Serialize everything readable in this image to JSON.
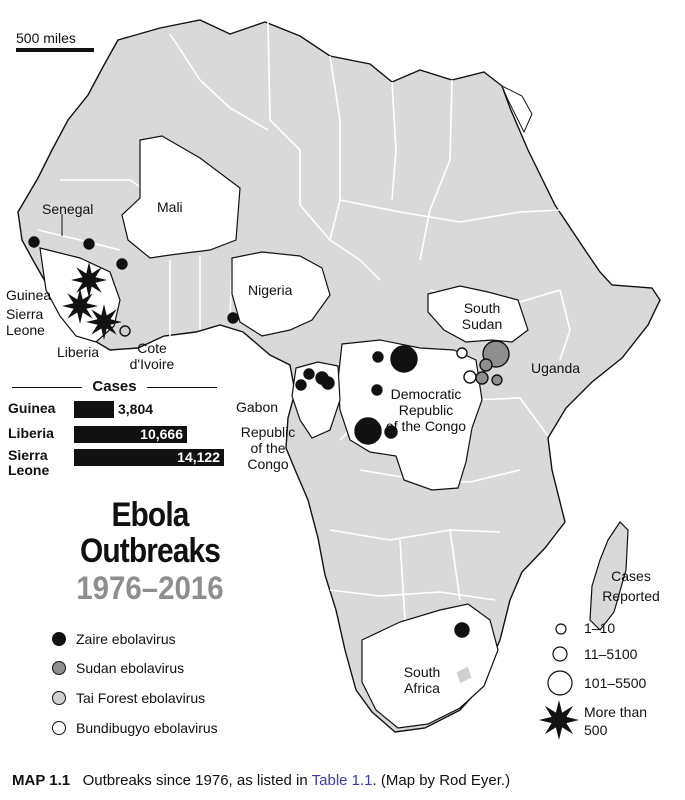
{
  "scale_label": "500 miles",
  "countries": {
    "senegal": "Senegal",
    "mali": "Mali",
    "guinea": "Guinea",
    "sierra_leone": "Sierra\nLeone",
    "liberia": "Liberia",
    "cote_divoire": "Cote\nd'Ivoire",
    "nigeria": "Nigeria",
    "south_sudan": "South\nSudan",
    "uganda": "Uganda",
    "gabon": "Gabon",
    "drc": "Democratic\nRepublic\nof the Congo",
    "republic_congo": "Republic\nof the\nCongo",
    "south_africa": "South\nAfrica"
  },
  "cases_table": {
    "heading": "Cases",
    "rows": [
      {
        "name": "Guinea",
        "value": "3,804",
        "cases": 3804
      },
      {
        "name": "Liberia",
        "value": "10,666",
        "cases": 10666
      },
      {
        "name": "Sierra\nLeone",
        "value": "14,122",
        "cases": 14122
      }
    ]
  },
  "title": {
    "line1": "Ebola",
    "line2": "Outbreaks",
    "line3": "1976–2016"
  },
  "legend": [
    {
      "label": "Zaire ebolavirus",
      "color": "#111111"
    },
    {
      "label": "Sudan ebolavirus",
      "color": "#8e8e8e"
    },
    {
      "label": "Tai Forest ebolavirus",
      "color": "#d0d0d0"
    },
    {
      "label": "Bundibugyo ebolavirus",
      "color": "#ffffff"
    }
  ],
  "size_legend": {
    "heading": "Cases\nReported",
    "items": [
      "1–10",
      "11–5100",
      "101–5500",
      "More than\n500"
    ]
  },
  "caption": {
    "label": "MAP 1.1",
    "text": "Outbreaks since 1976, as listed in",
    "link": "Table 1.1",
    "suffix": ". (Map by Rod Eyer.)"
  },
  "colors": {
    "land": "#d9d9d9",
    "highlight": "#ffffff",
    "border": "#ffffff",
    "outline": "#111111"
  }
}
